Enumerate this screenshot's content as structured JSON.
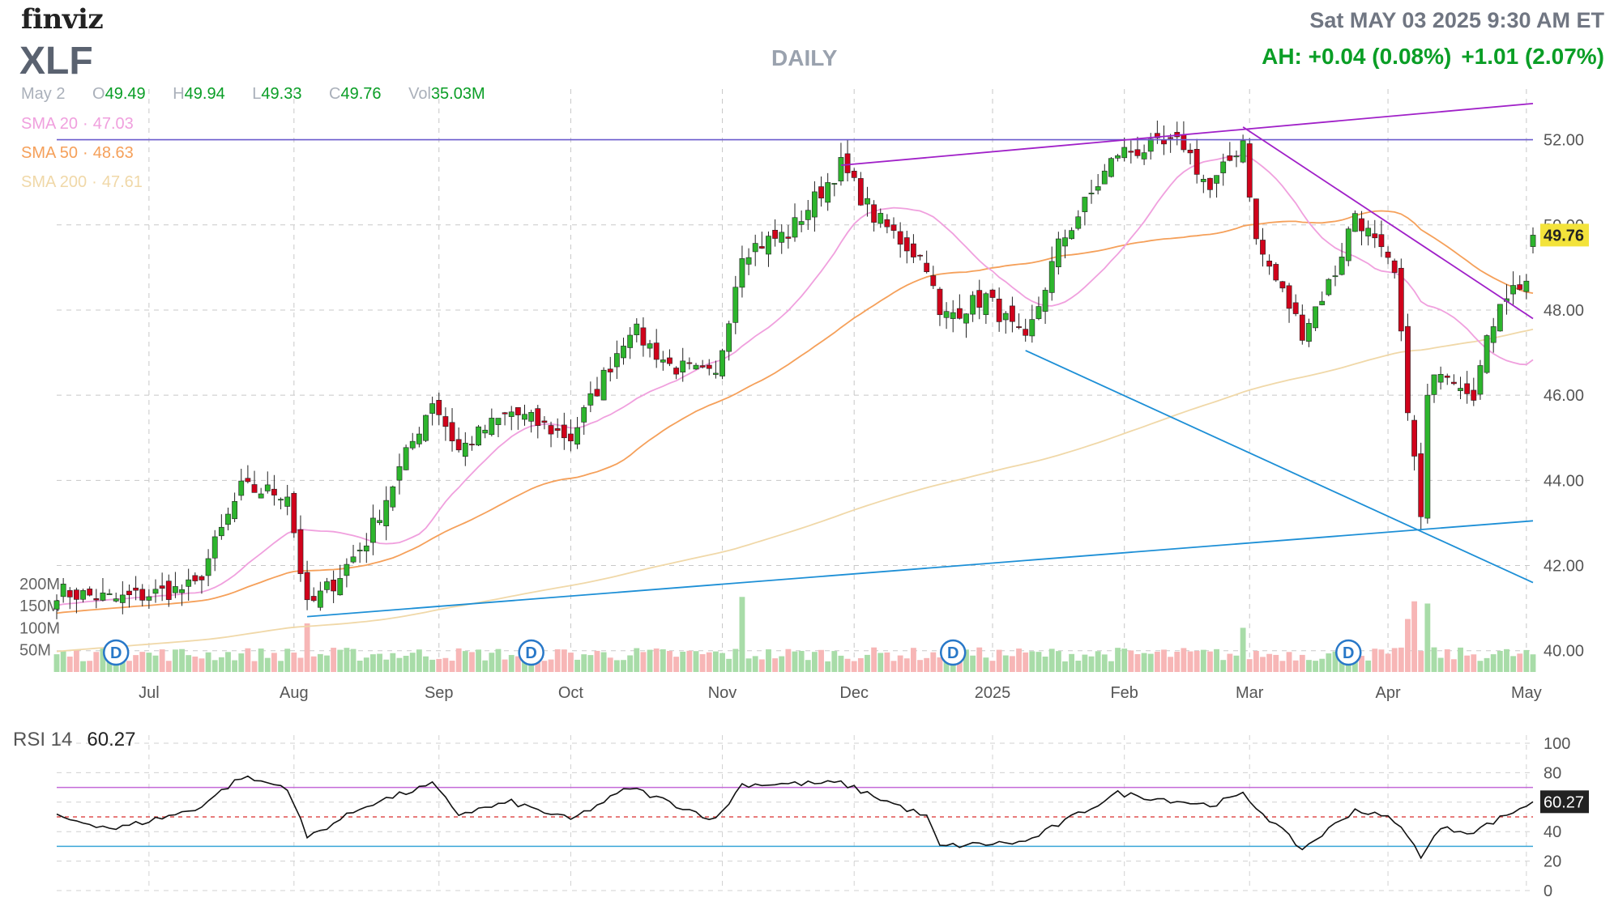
{
  "header": {
    "brand": "finviz",
    "ticker": "XLF",
    "timeframe": "DAILY",
    "datetime": "Sat MAY 03 2025 9:30 AM ET",
    "after_hours": "AH: +0.04 (0.08%)",
    "day_change": "+1.01 (2.07%)"
  },
  "ohlc": {
    "date": "May 2",
    "o_label": "O",
    "o": "49.49",
    "h_label": "H",
    "h": "49.94",
    "l_label": "L",
    "l": "49.33",
    "c_label": "C",
    "c": "49.76",
    "vol_label": "Vol",
    "vol": "35.03M"
  },
  "indicators": {
    "sma20": {
      "label": "SMA 20",
      "value": "47.03",
      "color": "#f0a0de"
    },
    "sma50": {
      "label": "SMA 50",
      "value": "48.63",
      "color": "#f5a05a"
    },
    "sma200": {
      "label": "SMA 200",
      "value": "47.61",
      "color": "#f0d8a8"
    }
  },
  "rsi": {
    "label": "RSI 14",
    "value": "60.27",
    "ticks": [
      "100",
      "80",
      "60",
      "40",
      "20",
      "0"
    ]
  },
  "colors": {
    "up": "#2db52d",
    "down": "#d0021b",
    "trend_purple": "#a020c8",
    "trend_blue": "#1d8fd6",
    "hline": "#6a5acd",
    "volume_up": "#a8dca8",
    "volume_down": "#f7b6b6",
    "last_price_bg": "#f3e33b"
  },
  "chart_data": {
    "type": "candlestick",
    "title": "XLF",
    "y_ticks": [
      "52.00",
      "50.00",
      "48.00",
      "46.00",
      "44.00",
      "42.00",
      "40.00"
    ],
    "ylim": [
      39.5,
      53.0
    ],
    "last_price_label": "49.76",
    "volume_ticks": [
      "200M",
      "150M",
      "100M",
      "50M"
    ],
    "x_tick_labels": [
      "Jul",
      "Aug",
      "Sep",
      "Oct",
      "Nov",
      "Dec",
      "2025",
      "Feb",
      "Mar",
      "Apr",
      "May"
    ],
    "x_tick_dates": [
      "2024-07-01",
      "2024-08-01",
      "2024-09-03",
      "2024-10-01",
      "2024-11-01",
      "2024-12-02",
      "2025-01-02",
      "2025-02-03",
      "2025-03-03",
      "2025-04-01",
      "2025-05-01"
    ],
    "dividend_markers": {
      "label": "D",
      "dates": [
        "2024-06-24",
        "2024-09-23",
        "2024-12-23",
        "2025-03-24"
      ]
    },
    "anchors": [
      {
        "date": "2024-06-10",
        "close": 41.4
      },
      {
        "date": "2024-06-24",
        "close": 41.2
      },
      {
        "date": "2024-07-11",
        "close": 41.5
      },
      {
        "date": "2024-07-22",
        "close": 43.8
      },
      {
        "date": "2024-07-31",
        "close": 43.7
      },
      {
        "date": "2024-08-05",
        "close": 41.0
      },
      {
        "date": "2024-08-09",
        "close": 41.6
      },
      {
        "date": "2024-08-16",
        "close": 42.6
      },
      {
        "date": "2024-08-30",
        "close": 45.9
      },
      {
        "date": "2024-09-06",
        "close": 44.7
      },
      {
        "date": "2024-09-12",
        "close": 45.2
      },
      {
        "date": "2024-09-18",
        "close": 45.6
      },
      {
        "date": "2024-10-01",
        "close": 45.0
      },
      {
        "date": "2024-10-14",
        "close": 47.6
      },
      {
        "date": "2024-10-22",
        "close": 46.7
      },
      {
        "date": "2024-10-31",
        "close": 46.4
      },
      {
        "date": "2024-11-06",
        "close": 49.4
      },
      {
        "date": "2024-11-15",
        "close": 49.8
      },
      {
        "date": "2024-11-27",
        "close": 51.4
      },
      {
        "date": "2024-12-05",
        "close": 50.2
      },
      {
        "date": "2024-12-17",
        "close": 49.1
      },
      {
        "date": "2024-12-19",
        "close": 47.8
      },
      {
        "date": "2024-12-31",
        "close": 48.3
      },
      {
        "date": "2025-01-10",
        "close": 47.2
      },
      {
        "date": "2025-01-17",
        "close": 49.5
      },
      {
        "date": "2025-01-31",
        "close": 51.7
      },
      {
        "date": "2025-02-14",
        "close": 51.9
      },
      {
        "date": "2025-02-21",
        "close": 50.8
      },
      {
        "date": "2025-02-28",
        "close": 52.0
      },
      {
        "date": "2025-03-04",
        "close": 49.6
      },
      {
        "date": "2025-03-13",
        "close": 47.5
      },
      {
        "date": "2025-03-20",
        "close": 48.9
      },
      {
        "date": "2025-03-25",
        "close": 50.3
      },
      {
        "date": "2025-04-02",
        "close": 48.8
      },
      {
        "date": "2025-04-04",
        "close": 45.8
      },
      {
        "date": "2025-04-08",
        "close": 43.1
      },
      {
        "date": "2025-04-09",
        "close": 45.9
      },
      {
        "date": "2025-04-11",
        "close": 46.7
      },
      {
        "date": "2025-04-21",
        "close": 46.1
      },
      {
        "date": "2025-04-25",
        "close": 48.3
      },
      {
        "date": "2025-05-01",
        "close": 48.7
      },
      {
        "date": "2025-05-02",
        "close": 49.76
      }
    ],
    "trendlines": [
      {
        "color": "trend_purple",
        "from": {
          "date": "2024-11-27",
          "price": 51.4
        },
        "to": {
          "date": "2025-05-02",
          "price": 52.85
        }
      },
      {
        "color": "trend_purple",
        "from": {
          "date": "2025-02-28",
          "price": 52.3
        },
        "to": {
          "date": "2025-05-02",
          "price": 47.8
        }
      },
      {
        "color": "trend_blue",
        "from": {
          "date": "2024-08-05",
          "price": 40.8
        },
        "to": {
          "date": "2025-05-02",
          "price": 43.05
        }
      },
      {
        "color": "trend_blue",
        "from": {
          "date": "2025-01-10",
          "price": 47.05
        },
        "to": {
          "date": "2025-05-02",
          "price": 41.6
        }
      }
    ],
    "horizontal_lines": [
      52.0
    ],
    "volume_typical_m": 40,
    "volume_spikes": [
      {
        "date": "2024-08-05",
        "m": 110
      },
      {
        "date": "2024-11-06",
        "m": 170
      },
      {
        "date": "2025-02-28",
        "m": 100
      },
      {
        "date": "2025-04-04",
        "m": 120
      },
      {
        "date": "2025-04-07",
        "m": 160
      },
      {
        "date": "2025-04-09",
        "m": 155
      }
    ],
    "rsi_anchors": [
      {
        "date": "2024-06-10",
        "v": 50
      },
      {
        "date": "2024-06-24",
        "v": 42
      },
      {
        "date": "2024-07-11",
        "v": 55
      },
      {
        "date": "2024-07-22",
        "v": 77
      },
      {
        "date": "2024-07-31",
        "v": 70
      },
      {
        "date": "2024-08-05",
        "v": 36
      },
      {
        "date": "2024-08-16",
        "v": 58
      },
      {
        "date": "2024-08-30",
        "v": 72
      },
      {
        "date": "2024-09-06",
        "v": 52
      },
      {
        "date": "2024-09-18",
        "v": 60
      },
      {
        "date": "2024-10-01",
        "v": 48
      },
      {
        "date": "2024-10-14",
        "v": 70
      },
      {
        "date": "2024-10-31",
        "v": 48
      },
      {
        "date": "2024-11-06",
        "v": 72
      },
      {
        "date": "2024-11-27",
        "v": 73
      },
      {
        "date": "2024-12-17",
        "v": 50
      },
      {
        "date": "2024-12-19",
        "v": 30
      },
      {
        "date": "2025-01-10",
        "v": 33
      },
      {
        "date": "2025-01-31",
        "v": 66
      },
      {
        "date": "2025-02-21",
        "v": 58
      },
      {
        "date": "2025-02-28",
        "v": 65
      },
      {
        "date": "2025-03-13",
        "v": 28
      },
      {
        "date": "2025-03-25",
        "v": 55
      },
      {
        "date": "2025-04-02",
        "v": 48
      },
      {
        "date": "2025-04-08",
        "v": 24
      },
      {
        "date": "2025-04-11",
        "v": 42
      },
      {
        "date": "2025-04-21",
        "v": 40
      },
      {
        "date": "2025-05-02",
        "v": 60.27
      }
    ],
    "rsi_levels": {
      "overbought": 70,
      "midline": 50,
      "oversold": 30
    }
  }
}
